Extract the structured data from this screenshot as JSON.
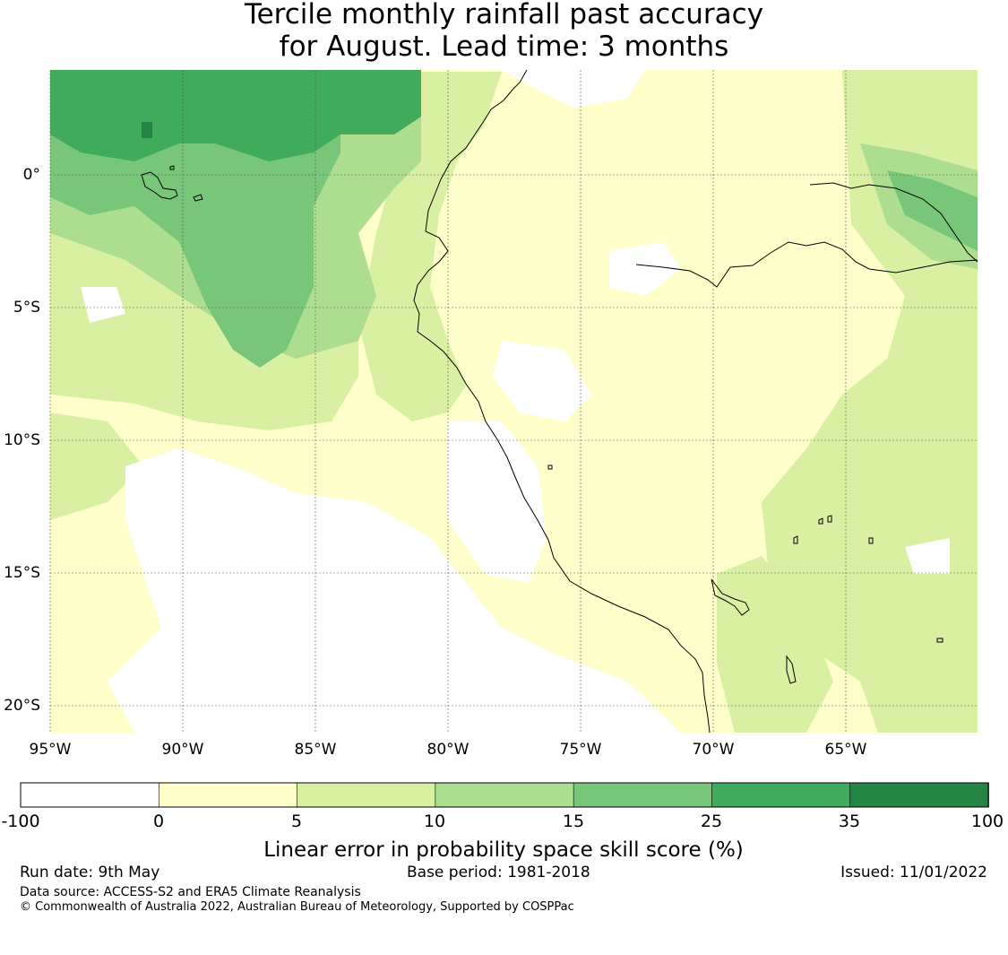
{
  "title": {
    "line1": "Tercile monthly rainfall past accuracy",
    "line2": "for August. Lead time: 3 months"
  },
  "map": {
    "x_ticks": [
      "95°W",
      "90°W",
      "85°W",
      "80°W",
      "75°W",
      "70°W",
      "65°W"
    ],
    "y_ticks": [
      "0°",
      "5°S",
      "10°S",
      "15°S",
      "20°S"
    ]
  },
  "legend": {
    "title": "Linear error in probability space skill score (%)",
    "ticks": [
      "-100",
      "0",
      "5",
      "10",
      "15",
      "25",
      "35",
      "100"
    ],
    "colors": [
      "#ffffff",
      "#ffffcc",
      "#d9f0a3",
      "#addd8e",
      "#78c679",
      "#41ab5d",
      "#238443"
    ]
  },
  "footer": {
    "run_date": "Run date: 9th May",
    "base_period": "Base period: 1981-2018",
    "issued": "Issued: 11/01/2022",
    "data_source": "Data source: ACCESS-S2 and ERA5 Climate Reanalysis",
    "copyright": "© Commonwealth of Australia 2022, Australian Bureau of Meteorology, Supported by COSPPac"
  }
}
